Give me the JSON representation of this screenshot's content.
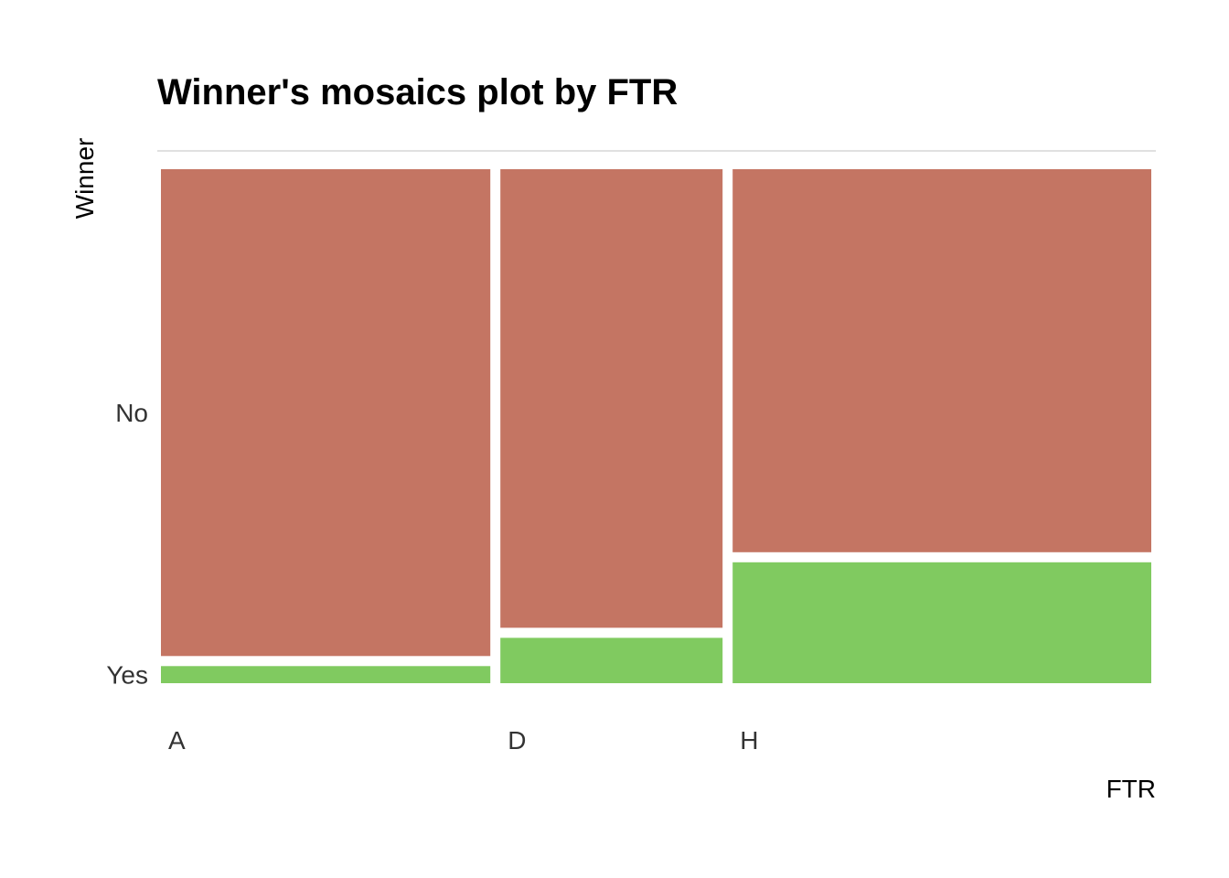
{
  "chart_data": {
    "type": "mosaic",
    "title": "Winner's mosaics plot by FTR",
    "xlabel": "FTR",
    "ylabel": "Winner",
    "x_categories": [
      "A",
      "D",
      "H"
    ],
    "y_categories": [
      "No",
      "Yes"
    ],
    "column_widths": [
      0.332,
      0.224,
      0.422
    ],
    "proportions": {
      "A": {
        "No": 0.966,
        "Yes": 0.034
      },
      "D": {
        "No": 0.91,
        "Yes": 0.09
      },
      "H": {
        "No": 0.76,
        "Yes": 0.24
      }
    },
    "colors": {
      "No": "#c47563",
      "Yes": "#80ca60"
    },
    "grid": false,
    "legend": "none"
  }
}
